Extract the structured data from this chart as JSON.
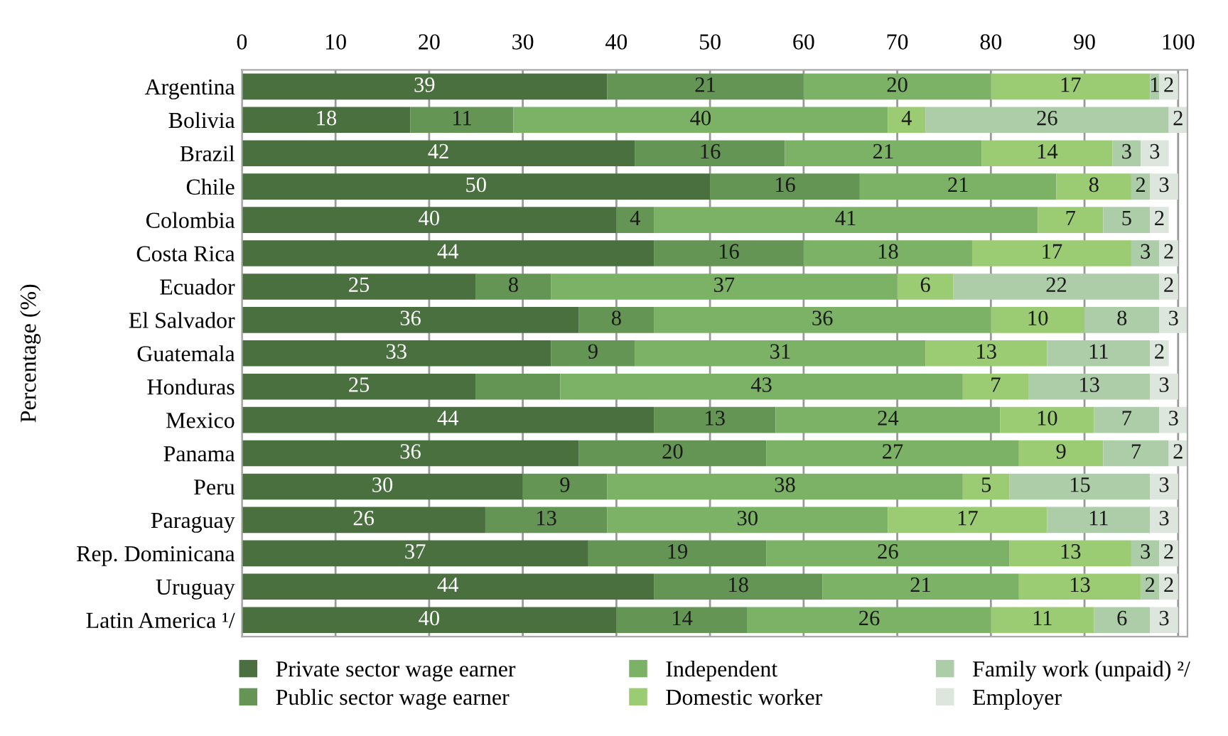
{
  "chart_data": {
    "type": "bar",
    "orientation": "horizontal",
    "stacked": true,
    "ylabel": "Percentage (%)",
    "categories": [
      "Argentina",
      "Bolivia",
      "Brazil",
      "Chile",
      "Colombia",
      "Costa Rica",
      "Ecuador",
      "El Salvador",
      "Guatemala",
      "Honduras",
      "Mexico",
      "Panama",
      "Peru",
      "Paraguay",
      "Rep. Dominicana",
      "Uruguay",
      "Latin America ¹/"
    ],
    "xlim": [
      0,
      101
    ],
    "xticks": [
      0,
      10,
      20,
      30,
      40,
      50,
      60,
      70,
      80,
      90,
      100
    ],
    "grid": "x",
    "legend": "bottom",
    "series": [
      {
        "name": "Private sector wage earner",
        "color": "#4a7040",
        "values": [
          39,
          18,
          42,
          50,
          40,
          44,
          25,
          36,
          33,
          25,
          44,
          36,
          30,
          26,
          37,
          44,
          40
        ],
        "value_labels": [
          "39",
          "18",
          "42",
          "50",
          "40",
          "44",
          "25",
          "36",
          "33",
          "25",
          "44",
          "36",
          "30",
          "26",
          "37",
          "44",
          "40"
        ]
      },
      {
        "name": "Public sector wage earner",
        "color": "#659555",
        "values": [
          21,
          11,
          16,
          16,
          4,
          16,
          8,
          8,
          9,
          9,
          13,
          20,
          9,
          13,
          19,
          18,
          14
        ],
        "value_labels": [
          "21",
          "11",
          "16",
          "16",
          "4",
          "16",
          "8",
          "8",
          "9",
          null,
          "13",
          "20",
          "9",
          "13",
          "19",
          "18",
          "14"
        ]
      },
      {
        "name": "Independent",
        "color": "#7bb266",
        "values": [
          20,
          40,
          21,
          21,
          41,
          18,
          37,
          36,
          31,
          43,
          24,
          27,
          38,
          30,
          26,
          21,
          26
        ],
        "value_labels": [
          "20",
          "40",
          "21",
          "21",
          "41",
          "18",
          "37",
          "36",
          "31",
          "43",
          "24",
          "27",
          "38",
          "30",
          "26",
          "21",
          "26"
        ]
      },
      {
        "name": "Domestic worker",
        "color": "#9bcb73",
        "values": [
          17,
          4,
          14,
          8,
          7,
          17,
          6,
          10,
          13,
          7,
          10,
          9,
          5,
          17,
          13,
          13,
          11
        ],
        "value_labels": [
          "17",
          "4",
          "14",
          "8",
          "7",
          "17",
          "6",
          "10",
          "13",
          "7",
          "10",
          "9",
          "5",
          "17",
          "13",
          "13",
          "11"
        ]
      },
      {
        "name": "Family work (unpaid) ²/",
        "color": "#adcda8",
        "values": [
          1,
          26,
          3,
          2,
          5,
          3,
          22,
          8,
          11,
          13,
          7,
          7,
          15,
          11,
          3,
          2,
          6
        ],
        "value_labels": [
          "1",
          "26",
          "3",
          "2",
          "5",
          "3",
          "22",
          "8",
          "11",
          "13",
          "7",
          "7",
          "15",
          "11",
          "3",
          "2",
          "6"
        ]
      },
      {
        "name": "Employer",
        "color": "#dde6dc",
        "values": [
          2,
          2,
          3,
          3,
          2,
          2,
          2,
          3,
          2,
          3,
          3,
          2,
          3,
          3,
          2,
          2,
          3
        ],
        "value_labels": [
          "2",
          "2",
          "3",
          "3",
          "2",
          "2",
          "2",
          "3",
          "2",
          "3",
          "3",
          "2",
          "3",
          "3",
          "2",
          "2",
          "3"
        ]
      }
    ]
  }
}
